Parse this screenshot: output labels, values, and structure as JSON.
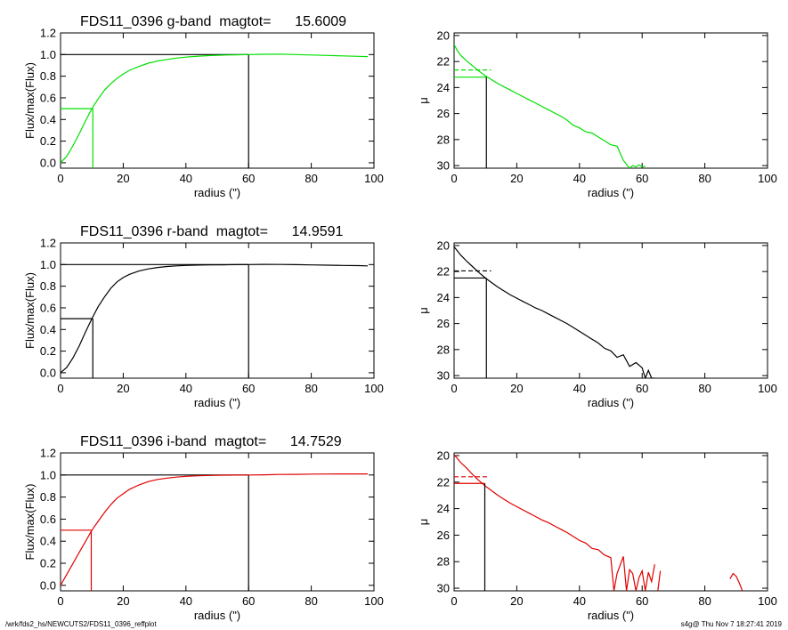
{
  "footer": {
    "path": "/wrk/fds2_hs/NEWCUTS2/FDS11_0396_reffplot",
    "stamp": "s4g@  Thu Nov  7 18:27:41 2019"
  },
  "chart_data": [
    {
      "type": "line",
      "panel": "flux-g",
      "title": "FDS11_0396 g-band  magtot=      15.6009",
      "xlabel": "radius (\")",
      "ylabel": "Flux/max(Flux)",
      "xlim": [
        0,
        100
      ],
      "ylim": [
        -0.05,
        1.2
      ],
      "xticks": [
        "0",
        "20",
        "40",
        "60",
        "80",
        "100"
      ],
      "yticks": [
        "0.0",
        "0.2",
        "0.4",
        "0.6",
        "0.8",
        "1.0",
        "1.2"
      ],
      "series": [
        {
          "color": "#00e000",
          "x": [
            0,
            2,
            4,
            6,
            8,
            10,
            12,
            14,
            16,
            18,
            20,
            22,
            25,
            28,
            31,
            34,
            37,
            40,
            44,
            48,
            52,
            56,
            60,
            65,
            70,
            75,
            80,
            85,
            90,
            95,
            98
          ],
          "y": [
            0.0,
            0.06,
            0.16,
            0.27,
            0.39,
            0.5,
            0.59,
            0.67,
            0.73,
            0.78,
            0.82,
            0.855,
            0.89,
            0.92,
            0.94,
            0.955,
            0.967,
            0.976,
            0.985,
            0.991,
            0.995,
            0.998,
            1.0,
            1.003,
            1.004,
            1.0,
            0.996,
            0.992,
            0.988,
            0.984,
            0.981
          ]
        }
      ],
      "half_light": {
        "radius": 10.3,
        "level": 0.5,
        "color": "#00e000"
      },
      "reference": {
        "radius": 60,
        "level": 1.0,
        "color": "#000000"
      }
    },
    {
      "type": "line",
      "panel": "mu-g",
      "xlabel": "radius (\")",
      "ylabel": "μ",
      "xlim": [
        0,
        100
      ],
      "ylim": [
        30.2,
        19.8
      ],
      "xticks": [
        "0",
        "20",
        "40",
        "60",
        "80",
        "100"
      ],
      "yticks": [
        "20",
        "22",
        "24",
        "26",
        "28",
        "30"
      ],
      "series": [
        {
          "color": "#00e000",
          "x": [
            0,
            1,
            2,
            4,
            6,
            8,
            10,
            12,
            14,
            16,
            18,
            20,
            22,
            24,
            26,
            28,
            30,
            32,
            34,
            36,
            38,
            40,
            42,
            44,
            46,
            48,
            50,
            52,
            54,
            56,
            57,
            58,
            59,
            60,
            61
          ],
          "y": [
            20.7,
            21.15,
            21.5,
            21.95,
            22.35,
            22.75,
            23.1,
            23.4,
            23.7,
            23.95,
            24.2,
            24.45,
            24.7,
            24.95,
            25.2,
            25.45,
            25.7,
            25.95,
            26.2,
            26.5,
            26.9,
            27.1,
            27.4,
            27.5,
            27.8,
            28.1,
            28.4,
            28.5,
            29.6,
            30.2,
            30.0,
            30.1,
            29.95,
            30.1,
            30.05
          ]
        }
      ],
      "half_light": {
        "radius": 10.3,
        "mu_eff": 23.2,
        "mu_mean": 22.65,
        "color": "#00e000"
      }
    },
    {
      "type": "line",
      "panel": "flux-r",
      "title": "FDS11_0396 r-band  magtot=      14.9591",
      "xlabel": "radius (\")",
      "ylabel": "Flux/max(Flux)",
      "xlim": [
        0,
        100
      ],
      "ylim": [
        -0.05,
        1.2
      ],
      "xticks": [
        "0",
        "20",
        "40",
        "60",
        "80",
        "100"
      ],
      "yticks": [
        "0.0",
        "0.2",
        "0.4",
        "0.6",
        "0.8",
        "1.0",
        "1.2"
      ],
      "series": [
        {
          "color": "#000000",
          "x": [
            0,
            2,
            4,
            6,
            8,
            10,
            12,
            14,
            16,
            18,
            20,
            22,
            25,
            28,
            31,
            34,
            37,
            40,
            44,
            48,
            52,
            56,
            60,
            65,
            70,
            75,
            80,
            85,
            90,
            95,
            98
          ],
          "y": [
            0.0,
            0.05,
            0.14,
            0.25,
            0.38,
            0.5,
            0.61,
            0.7,
            0.78,
            0.84,
            0.88,
            0.91,
            0.94,
            0.96,
            0.973,
            0.982,
            0.988,
            0.992,
            0.995,
            0.997,
            0.998,
            0.999,
            1.0,
            1.002,
            1.001,
            0.999,
            0.997,
            0.994,
            0.992,
            0.99,
            0.988
          ]
        }
      ],
      "half_light": {
        "radius": 10.3,
        "level": 0.5,
        "color": "#000000"
      },
      "reference": {
        "radius": 60,
        "level": 1.0,
        "color": "#000000"
      }
    },
    {
      "type": "line",
      "panel": "mu-r",
      "xlabel": "radius (\")",
      "ylabel": "μ",
      "xlim": [
        0,
        100
      ],
      "ylim": [
        30.2,
        19.8
      ],
      "xticks": [
        "0",
        "20",
        "40",
        "60",
        "80",
        "100"
      ],
      "yticks": [
        "20",
        "22",
        "24",
        "26",
        "28",
        "30"
      ],
      "series": [
        {
          "color": "#000000",
          "x": [
            0,
            1,
            2,
            4,
            6,
            8,
            10,
            12,
            14,
            16,
            18,
            20,
            22,
            24,
            26,
            28,
            30,
            32,
            34,
            36,
            38,
            40,
            42,
            44,
            46,
            48,
            50,
            52,
            54,
            56,
            58,
            60,
            61,
            62,
            63,
            64
          ],
          "y": [
            20.1,
            20.4,
            20.7,
            21.2,
            21.65,
            22.1,
            22.5,
            22.85,
            23.2,
            23.5,
            23.8,
            24.05,
            24.3,
            24.55,
            24.8,
            25.0,
            25.25,
            25.5,
            25.75,
            26.0,
            26.3,
            26.6,
            26.9,
            27.2,
            27.5,
            27.9,
            28.1,
            28.6,
            28.4,
            29.3,
            29.0,
            29.4,
            30.2,
            29.6,
            30.2,
            30.2
          ]
        }
      ],
      "half_light": {
        "radius": 10.3,
        "mu_eff": 22.5,
        "mu_mean": 21.95,
        "color": "#000000"
      }
    },
    {
      "type": "line",
      "panel": "flux-i",
      "title": "FDS11_0396 i-band  magtot=      14.7529",
      "xlabel": "radius (\")",
      "ylabel": "Flux/max(Flux)",
      "xlim": [
        0,
        100
      ],
      "ylim": [
        -0.05,
        1.2
      ],
      "xticks": [
        "0",
        "20",
        "40",
        "60",
        "80",
        "100"
      ],
      "yticks": [
        "0.0",
        "0.2",
        "0.4",
        "0.6",
        "0.8",
        "1.0",
        "1.2"
      ],
      "series": [
        {
          "color": "#e00000",
          "x": [
            0,
            2,
            4,
            6,
            8,
            10,
            12,
            14,
            16,
            18,
            20,
            22,
            25,
            28,
            31,
            34,
            37,
            40,
            44,
            48,
            52,
            56,
            60,
            65,
            70,
            75,
            80,
            85,
            90,
            95,
            98
          ],
          "y": [
            0.0,
            0.1,
            0.2,
            0.3,
            0.4,
            0.5,
            0.58,
            0.66,
            0.73,
            0.79,
            0.83,
            0.87,
            0.91,
            0.94,
            0.96,
            0.972,
            0.981,
            0.988,
            0.993,
            0.996,
            0.998,
            0.999,
            1.0,
            1.002,
            1.005,
            1.006,
            1.008,
            1.009,
            1.01,
            1.01,
            1.01
          ]
        }
      ],
      "half_light": {
        "radius": 9.8,
        "level": 0.5,
        "color": "#e00000"
      },
      "reference": {
        "radius": 60,
        "level": 1.0,
        "color": "#000000"
      }
    },
    {
      "type": "line",
      "panel": "mu-i",
      "xlabel": "radius (\")",
      "ylabel": "μ",
      "xlim": [
        0,
        100
      ],
      "ylim": [
        30.2,
        19.8
      ],
      "xticks": [
        "0",
        "20",
        "40",
        "60",
        "80",
        "100"
      ],
      "yticks": [
        "20",
        "22",
        "24",
        "26",
        "28",
        "30"
      ],
      "series": [
        {
          "color": "#e00000",
          "x": [
            0,
            1,
            2,
            4,
            6,
            8,
            10,
            12,
            14,
            16,
            18,
            20,
            22,
            24,
            26,
            28,
            30,
            32,
            34,
            36,
            38,
            40,
            42,
            44,
            46,
            48,
            50,
            51,
            52,
            54,
            55,
            56,
            57,
            58,
            59,
            60,
            61,
            62,
            63,
            64
          ],
          "y": [
            19.95,
            20.2,
            20.5,
            20.95,
            21.45,
            21.9,
            22.3,
            22.65,
            23.0,
            23.3,
            23.6,
            23.85,
            24.1,
            24.35,
            24.6,
            24.85,
            25.05,
            25.3,
            25.55,
            25.8,
            26.1,
            26.4,
            26.6,
            27.0,
            27.1,
            27.5,
            27.7,
            30.2,
            28.9,
            27.6,
            30.2,
            28.6,
            28.9,
            30.2,
            29.2,
            28.7,
            30.2,
            28.8,
            29.5,
            28.2
          ]
        },
        {
          "color": "#e00000",
          "x": [
            65,
            65.8
          ],
          "y": [
            30.2,
            28.7
          ]
        },
        {
          "color": "#e00000",
          "x": [
            88,
            89,
            90,
            91,
            92
          ],
          "y": [
            29.3,
            28.9,
            29.1,
            29.6,
            30.2
          ]
        }
      ],
      "half_light": {
        "radius": 9.8,
        "mu_eff": 22.1,
        "mu_mean": 21.6,
        "color": "#e00000"
      }
    }
  ]
}
